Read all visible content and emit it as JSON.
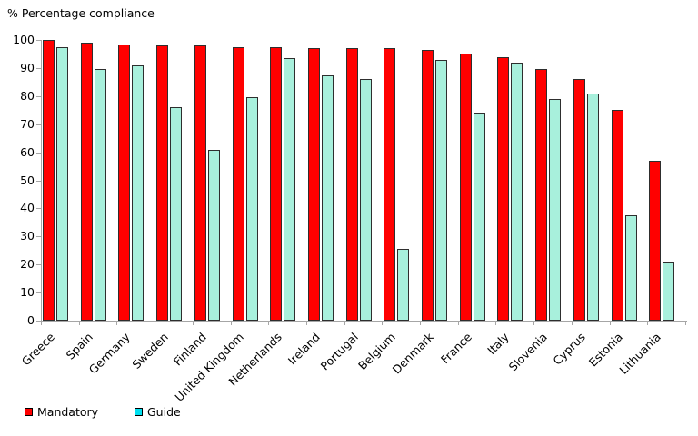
{
  "chart_data": {
    "type": "bar",
    "title": "% Percentage compliance",
    "categories": [
      "Greece",
      "Spain",
      "Germany",
      "Sweden",
      "Finland",
      "United Kingdom",
      "Netherlands",
      "Ireland",
      "Portugal",
      "Belgium",
      "Denmark",
      "France",
      "Italy",
      "Slovenia",
      "Cyprus",
      "Estonia",
      "Lithuania"
    ],
    "series": [
      {
        "name": "Mandatory",
        "color": "#FF0000",
        "values": [
          100,
          99,
          98.5,
          98,
          98,
          97.5,
          97.5,
          97,
          97,
          97,
          96.5,
          95,
          94,
          89.5,
          86,
          75,
          57
        ]
      },
      {
        "name": "Guide",
        "color": "#A8F0DC",
        "values": [
          97.5,
          89.5,
          91,
          76,
          61,
          79.5,
          93.5,
          87.5,
          86,
          25.5,
          93,
          74,
          92,
          79,
          81,
          37.5,
          21
        ]
      }
    ],
    "ylim": [
      0,
      100
    ],
    "ytick_step": 10,
    "yticks": [
      0,
      10,
      20,
      30,
      40,
      50,
      60,
      70,
      80,
      90,
      100
    ],
    "grid": false,
    "legend_position": "bottom-left"
  },
  "legend": {
    "items": [
      {
        "label": "Mandatory",
        "swatch_color": "#FF0000"
      },
      {
        "label": "Guide",
        "swatch_color": "#00E0F0"
      }
    ]
  },
  "colors": {
    "axis": "#A6A6A6",
    "bar_border": "#2E2E2E",
    "background": "#FFFFFF",
    "text": "#000000"
  }
}
